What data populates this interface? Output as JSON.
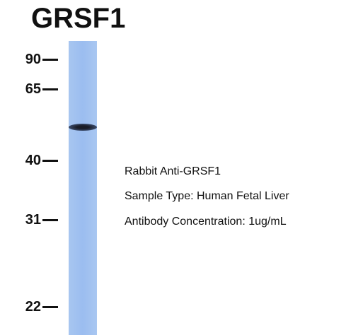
{
  "header": {
    "title": "GRSF1"
  },
  "markers": [
    "90",
    "65",
    "40",
    "31",
    "22"
  ],
  "info": [
    "Rabbit Anti-GRSF1",
    "Sample Type: Human Fetal Liver",
    "Antibody Concentration: 1ug/mL"
  ]
}
